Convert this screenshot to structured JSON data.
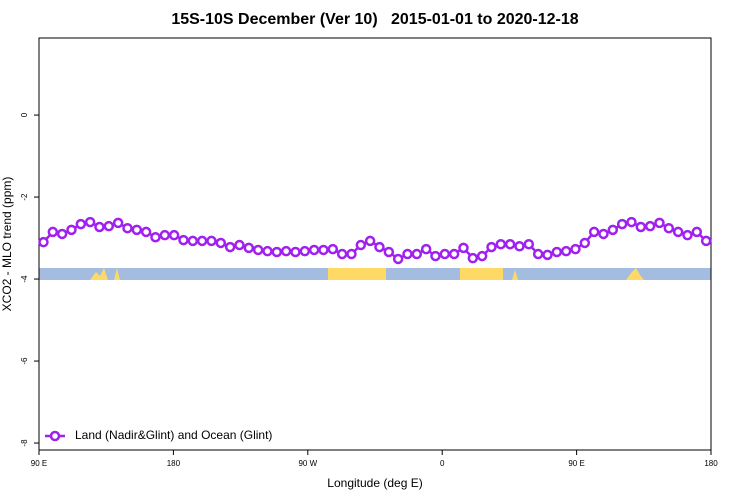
{
  "chart_data": {
    "type": "line",
    "title": "15S-10S December (Ver 10)   2015-01-01 to 2020-12-18",
    "x_label": "Longitude (deg E)",
    "y_label": "XCO2 - MLO trend (ppm)",
    "xlim": [
      90,
      540
    ],
    "xticks": [
      {
        "value": 90,
        "label": "90 E"
      },
      180,
      {
        "value": 270,
        "label": "90 W"
      },
      {
        "value": 360,
        "label": "0"
      },
      {
        "value": 450,
        "label": "90 E"
      },
      {
        "value": 540,
        "label": "180"
      }
    ],
    "ylim": [
      -8.17,
      1.88
    ],
    "yticks": [
      0,
      -2,
      -4,
      -6,
      -8
    ],
    "legend": "bottom-left",
    "x": [
      93,
      99.25,
      105.5,
      111.75,
      118,
      124.25,
      130.5,
      136.75,
      143,
      149.25,
      155.5,
      161.75,
      168,
      174.25,
      180.5,
      186.75,
      193,
      199.25,
      205.5,
      211.75,
      218,
      224.25,
      230.5,
      236.75,
      243,
      249.25,
      255.5,
      261.75,
      268,
      274.25,
      280.5,
      286.75,
      293,
      299.25,
      305.5,
      311.75,
      318,
      324.25,
      330.5,
      336.75,
      343,
      349.25,
      355.5,
      361.75,
      368,
      374.25,
      380.5,
      386.75,
      393,
      399.25,
      405.5,
      411.75,
      418,
      424.25,
      430.5,
      436.75,
      443,
      449.25,
      455.5,
      461.75,
      468,
      474.25,
      480.5,
      486.75,
      493,
      499.25,
      505.5,
      511.75,
      518,
      524.25,
      530.5,
      536.75
    ],
    "series": [
      {
        "name": "Land (Nadir&Glint) and Ocean (Glint)",
        "color": "#a020f0",
        "values": [
          -3.1,
          -2.85,
          -2.9,
          -2.8,
          -2.66,
          -2.61,
          -2.73,
          -2.71,
          -2.63,
          -2.76,
          -2.8,
          -2.85,
          -2.98,
          -2.93,
          -2.93,
          -3.05,
          -3.07,
          -3.07,
          -3.07,
          -3.12,
          -3.22,
          -3.17,
          -3.24,
          -3.29,
          -3.32,
          -3.34,
          -3.32,
          -3.34,
          -3.32,
          -3.29,
          -3.29,
          -3.27,
          -3.39,
          -3.39,
          -3.17,
          -3.07,
          -3.22,
          -3.34,
          -3.51,
          -3.39,
          -3.39,
          -3.27,
          -3.44,
          -3.39,
          -3.39,
          -3.24,
          -3.49,
          -3.44,
          -3.22,
          -3.15,
          -3.15,
          -3.2,
          -3.15,
          -3.39,
          -3.41,
          -3.34,
          -3.32,
          -3.27,
          -3.12,
          -2.85,
          -2.9,
          -2.8,
          -2.66,
          -2.61,
          -2.73,
          -2.71,
          -2.63,
          -2.76,
          -2.85,
          -2.93,
          -2.85,
          -3.07
        ]
      }
    ]
  }
}
